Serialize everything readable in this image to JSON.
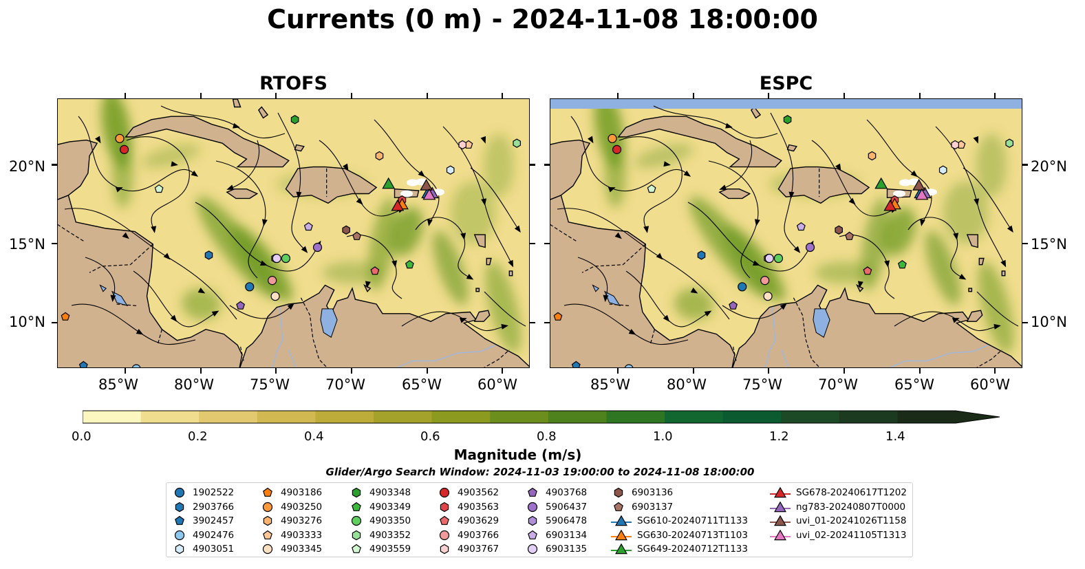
{
  "title": "Currents (0 m) - 2024-11-08 18:00:00",
  "panels": [
    {
      "title": "RTOFS"
    },
    {
      "title": "ESPC"
    }
  ],
  "lon_ticks": [
    "85°W",
    "80°W",
    "75°W",
    "70°W",
    "65°W",
    "60°W"
  ],
  "lat_ticks": [
    "20°N",
    "15°N",
    "10°N"
  ],
  "map_extent": {
    "lon": [
      -89.5,
      -58.2
    ],
    "lat": [
      7.1,
      24.2
    ]
  },
  "colorbar": {
    "label": "Magnitude (m/s)",
    "ticks": [
      "0.0",
      "0.2",
      "0.4",
      "0.6",
      "0.8",
      "1.0",
      "1.2",
      "1.4"
    ],
    "range": [
      0.0,
      1.5
    ],
    "extend": "max",
    "colors": [
      "#fcf6c0",
      "#f0dd8e",
      "#e2c86e",
      "#d1b850",
      "#bdac3a",
      "#a5a22b",
      "#8c9a20",
      "#6c8e1c",
      "#4f821d",
      "#2f7622",
      "#126630",
      "#0b5a30",
      "#1c4a26",
      "#1b3a20",
      "#1a2c18"
    ]
  },
  "search_window": "Glider/Argo Search Window: 2024-11-03 19:00:00 to 2024-11-08 18:00:00",
  "map_colors": {
    "land": "#d1b28e",
    "lake": "#8fb1e1",
    "ocean_low": "#f0dd8e",
    "ocean_high": "#3a8020",
    "stream": "#000000",
    "glider_white": "#ffffff"
  },
  "legend": {
    "columns": [
      [
        {
          "label": "1902522",
          "marker": "circle",
          "color": "#1f77b4"
        },
        {
          "label": "2903766",
          "marker": "hexagon",
          "color": "#1f77b4"
        },
        {
          "label": "3902457",
          "marker": "pentagon",
          "color": "#1f77b4"
        },
        {
          "label": "4902476",
          "marker": "circle",
          "color": "#8ec7ef"
        },
        {
          "label": "4903051",
          "marker": "hexagon",
          "color": "#d6ecfb"
        }
      ],
      [
        {
          "label": "4903186",
          "marker": "pentagon",
          "color": "#ff7f0e"
        },
        {
          "label": "4903250",
          "marker": "circle",
          "color": "#ff9a3c"
        },
        {
          "label": "4903276",
          "marker": "hexagon",
          "color": "#ffb46e"
        },
        {
          "label": "4903333",
          "marker": "pentagon",
          "color": "#ffc896"
        },
        {
          "label": "4903345",
          "marker": "circle",
          "color": "#ffe0c2"
        }
      ],
      [
        {
          "label": "4903348",
          "marker": "hexagon",
          "color": "#2ca02c"
        },
        {
          "label": "4903349",
          "marker": "pentagon",
          "color": "#3db83d"
        },
        {
          "label": "4903350",
          "marker": "circle",
          "color": "#5fd05f"
        },
        {
          "label": "4903352",
          "marker": "hexagon",
          "color": "#98e098"
        },
        {
          "label": "4903559",
          "marker": "pentagon",
          "color": "#d2f5d2"
        }
      ],
      [
        {
          "label": "4903562",
          "marker": "circle",
          "color": "#d62728"
        },
        {
          "label": "4903563",
          "marker": "hexagon",
          "color": "#e04448"
        },
        {
          "label": "4903629",
          "marker": "pentagon",
          "color": "#ea6a6c"
        },
        {
          "label": "4903766",
          "marker": "circle",
          "color": "#f29a9a"
        },
        {
          "label": "4903767",
          "marker": "hexagon",
          "color": "#fad0d0"
        }
      ],
      [
        {
          "label": "4903768",
          "marker": "pentagon",
          "color": "#9467bd"
        },
        {
          "label": "5906437",
          "marker": "circle",
          "color": "#9e72c8"
        },
        {
          "label": "5906478",
          "marker": "hexagon",
          "color": "#b08ed6"
        },
        {
          "label": "6903134",
          "marker": "pentagon",
          "color": "#c9ade6"
        },
        {
          "label": "6903135",
          "marker": "circle",
          "color": "#e3cff5"
        }
      ],
      [
        {
          "label": "6903136",
          "marker": "hexagon",
          "color": "#8c564b"
        },
        {
          "label": "6903137",
          "marker": "pentagon",
          "color": "#a87464"
        },
        {
          "label": "SG610-20240711T1133",
          "marker": "triangle",
          "color": "#1f77b4"
        },
        {
          "label": "SG630-20240713T1103",
          "marker": "triangle",
          "color": "#ff7f0e"
        },
        {
          "label": "SG649-20240712T1133",
          "marker": "triangle",
          "color": "#2ca02c"
        }
      ],
      [
        {
          "label": "SG678-20240617T1202",
          "marker": "triangle",
          "color": "#d62728"
        },
        {
          "label": "ng783-20240807T0000",
          "marker": "triangle",
          "color": "#9467bd"
        },
        {
          "label": "uvi_01-20241026T1158",
          "marker": "triangle",
          "color": "#8c564b"
        },
        {
          "label": "uvi_02-20241105T1313",
          "marker": "triangle",
          "color": "#e377c2"
        }
      ]
    ]
  },
  "platforms": [
    {
      "id": "1902522",
      "lon": -76.8,
      "lat": 12.3
    },
    {
      "id": "2903766",
      "lon": -79.5,
      "lat": 14.3
    },
    {
      "id": "3902457",
      "lon": -87.8,
      "lat": 7.3
    },
    {
      "id": "4902476",
      "lon": -84.3,
      "lat": 7.1
    },
    {
      "id": "4903051",
      "lon": -63.5,
      "lat": 19.7
    },
    {
      "id": "4903186",
      "lon": -89.0,
      "lat": 10.4
    },
    {
      "id": "4903250",
      "lon": -85.4,
      "lat": 21.7
    },
    {
      "id": "4903276",
      "lon": -68.2,
      "lat": 20.6
    },
    {
      "id": "4903333",
      "lon": -62.3,
      "lat": 21.3
    },
    {
      "id": "4903345",
      "lon": -75.1,
      "lat": 11.7
    },
    {
      "id": "4903348",
      "lon": -73.8,
      "lat": 22.9
    },
    {
      "id": "4903349",
      "lon": -66.2,
      "lat": 13.7
    },
    {
      "id": "4903350",
      "lon": -74.4,
      "lat": 14.1
    },
    {
      "id": "4903352",
      "lon": -59.1,
      "lat": 21.4
    },
    {
      "id": "4903559",
      "lon": -82.8,
      "lat": 18.5
    },
    {
      "id": "4903562",
      "lon": -85.1,
      "lat": 21.0
    },
    {
      "id": "4903563",
      "lon": -66.7,
      "lat": 17.8
    },
    {
      "id": "4903629",
      "lon": -68.5,
      "lat": 13.3
    },
    {
      "id": "4903766",
      "lon": -75.3,
      "lat": 12.7
    },
    {
      "id": "4903767",
      "lon": -62.7,
      "lat": 21.3
    },
    {
      "id": "4903768",
      "lon": -77.4,
      "lat": 11.1
    },
    {
      "id": "5906437",
      "lon": -72.3,
      "lat": 14.8
    },
    {
      "id": "5906478",
      "lon": -75.1,
      "lat": 14.1
    },
    {
      "id": "6903134",
      "lon": -72.9,
      "lat": 16.1
    },
    {
      "id": "6903135",
      "lon": -75.0,
      "lat": 14.1
    },
    {
      "id": "6903136",
      "lon": -70.4,
      "lat": 15.9
    },
    {
      "id": "6903137",
      "lon": -69.7,
      "lat": 15.5
    },
    {
      "id": "SG610-20240711T1133",
      "lon": -65.0,
      "lat": 18.2
    },
    {
      "id": "SG630-20240713T1103",
      "lon": -66.7,
      "lat": 17.5
    },
    {
      "id": "SG649-20240712T1133",
      "lon": -67.6,
      "lat": 18.8
    },
    {
      "id": "SG678-20240617T1202",
      "lon": -67.0,
      "lat": 17.4
    },
    {
      "id": "ng783-20240807T0000",
      "lon": -64.7,
      "lat": 18.2
    },
    {
      "id": "uvi_01-20241026T1158",
      "lon": -65.1,
      "lat": 18.7
    },
    {
      "id": "uvi_02-20241105T1313",
      "lon": -64.9,
      "lat": 18.1
    }
  ]
}
